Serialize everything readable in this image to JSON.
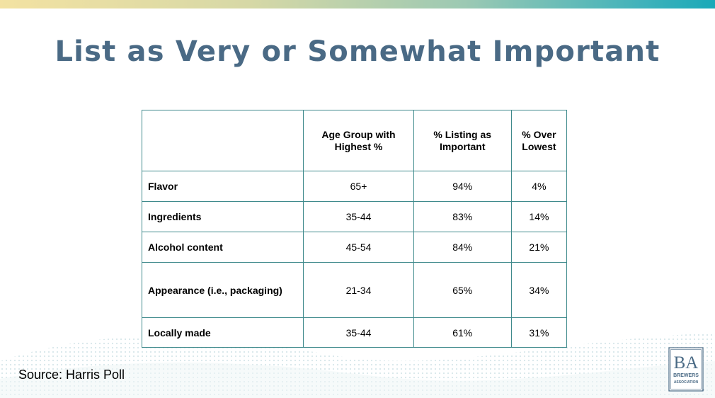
{
  "slide": {
    "title": "List as Very or Somewhat Important",
    "source": "Source: Harris Poll"
  },
  "table": {
    "headers": [
      "",
      "Age Group with Highest %",
      "% Listing as Important",
      "% Over Lowest"
    ],
    "rows": [
      {
        "factor": "Flavor",
        "age_group": "65+",
        "pct_important": "94%",
        "pct_over_lowest": "4%"
      },
      {
        "factor": "Ingredients",
        "age_group": "35-44",
        "pct_important": "83%",
        "pct_over_lowest": "14%"
      },
      {
        "factor": "Alcohol content",
        "age_group": "45-54",
        "pct_important": "84%",
        "pct_over_lowest": "21%"
      },
      {
        "factor": "Appearance (i.e., packaging)",
        "age_group": "21-34",
        "pct_important": "65%",
        "pct_over_lowest": "34%"
      },
      {
        "factor": "Locally made",
        "age_group": "35-44",
        "pct_important": "61%",
        "pct_over_lowest": "31%"
      }
    ]
  },
  "logo": {
    "monogram": "BA",
    "line1": "BREWERS",
    "line2": "ASSOCIATION",
    "mark": "®"
  },
  "colors": {
    "title": "#4a6a85",
    "table_border": "#3f8a8c",
    "accent_teal": "#1aa9b8",
    "accent_yellow": "#f3e2a2"
  }
}
